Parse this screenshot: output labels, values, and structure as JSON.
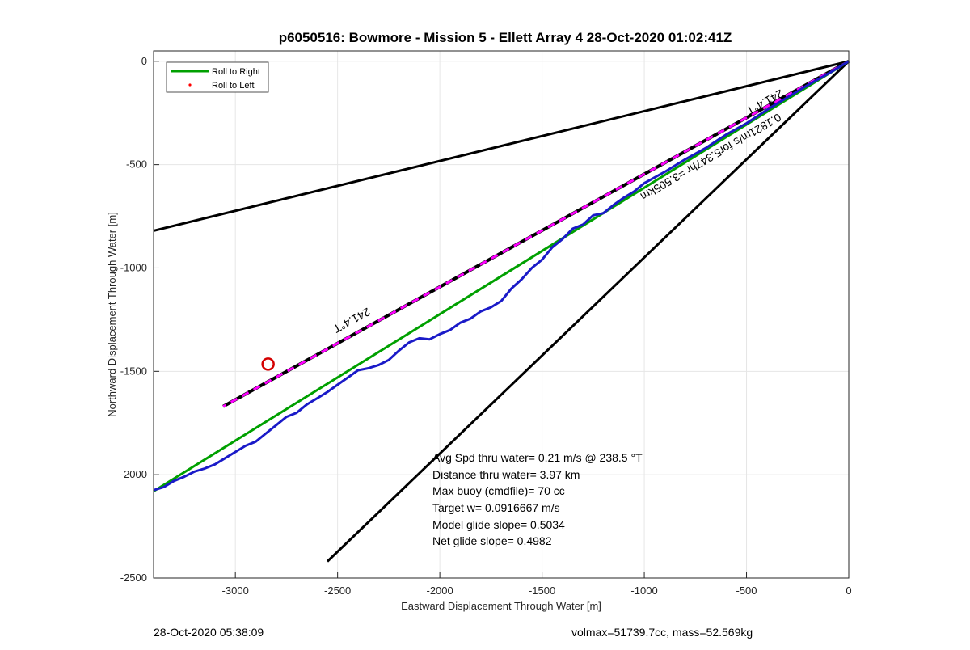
{
  "chart_data": {
    "type": "line",
    "title": "p6050516: Bowmore - Mission 5 - Ellett Array 4 28-Oct-2020 01:02:41Z",
    "xlabel": "Eastward Displacement Through Water [m]",
    "ylabel": "Northward Displacement Through Water [m]",
    "xlim": [
      -3400,
      0
    ],
    "ylim": [
      -2500,
      50
    ],
    "xticks": [
      -3000,
      -2500,
      -2000,
      -1500,
      -1000,
      -500,
      0
    ],
    "yticks": [
      0,
      -500,
      -1000,
      -1500,
      -2000,
      -2500
    ],
    "grid": true,
    "legend": {
      "placement": "top-left",
      "entries": [
        "Roll to Right",
        "Roll to Left"
      ]
    },
    "series": [
      {
        "name": "Roll to Right",
        "color": "#00a000",
        "x": [
          0,
          -3400
        ],
        "y": [
          0,
          -2080
        ]
      },
      {
        "name": "Roll to Left",
        "color": "#ff0000",
        "x": [],
        "y": []
      },
      {
        "color": "#1a1ac8",
        "x": [
          0,
          -100,
          -200,
          -300,
          -400,
          -500,
          -600,
          -700,
          -800,
          -900,
          -1000,
          -1050,
          -1100,
          -1150,
          -1200,
          -1250,
          -1300,
          -1350,
          -1400,
          -1450,
          -1500,
          -1550,
          -1600,
          -1650,
          -1700,
          -1750,
          -1800,
          -1850,
          -1900,
          -1950,
          -2000,
          -2050,
          -2100,
          -2150,
          -2200,
          -2250,
          -2300,
          -2350,
          -2400,
          -2450,
          -2500,
          -2550,
          -2600,
          -2650,
          -2700,
          -2750,
          -2800,
          -2850,
          -2900,
          -2950,
          -3000,
          -3050,
          -3100,
          -3150,
          -3200,
          -3250,
          -3300,
          -3350,
          -3400
        ],
        "y": [
          0,
          -60,
          -115,
          -175,
          -235,
          -300,
          -355,
          -420,
          -475,
          -535,
          -590,
          -630,
          -660,
          -695,
          -735,
          -745,
          -790,
          -810,
          -860,
          -900,
          -960,
          -1000,
          -1055,
          -1100,
          -1160,
          -1190,
          -1210,
          -1245,
          -1265,
          -1300,
          -1320,
          -1345,
          -1340,
          -1360,
          -1400,
          -1445,
          -1470,
          -1485,
          -1495,
          -1530,
          -1565,
          -1600,
          -1630,
          -1660,
          -1700,
          -1720,
          -1760,
          -1800,
          -1840,
          -1860,
          -1890,
          -1920,
          -1950,
          -1970,
          -1985,
          -2010,
          -2030,
          -2060,
          -2075
        ]
      },
      {
        "color": "#ff00ff",
        "x": [
          0,
          -3060
        ],
        "y": [
          0,
          -1670
        ]
      },
      {
        "color": "#000000",
        "x": [
          0,
          -3400
        ],
        "y": [
          0,
          -820
        ]
      },
      {
        "color": "#000000",
        "x": [
          0,
          -2550
        ],
        "y": [
          0,
          -2420
        ]
      }
    ],
    "markers": [
      {
        "x": -2840,
        "y": -1465,
        "color": "#d40000"
      }
    ],
    "annotations": {
      "heading_label_1": "241.4°T",
      "heading_label_2": "241.4°T",
      "current_label": "0.1821m/s for5.347hr =3.505km",
      "stats": [
        "Avg Spd thru water=  0.21 m/s @ 238.5 °T",
        "Distance thru water=  3.97 km",
        "Max buoy (cmdfile)= 70 cc",
        "Target w= 0.0916667 m/s",
        "Model glide slope= 0.5034",
        "Net glide slope= 0.4982"
      ]
    }
  },
  "footer": {
    "timestamp": "28-Oct-2020 05:38:09",
    "params": "volmax=51739.7cc, mass=52.569kg"
  }
}
